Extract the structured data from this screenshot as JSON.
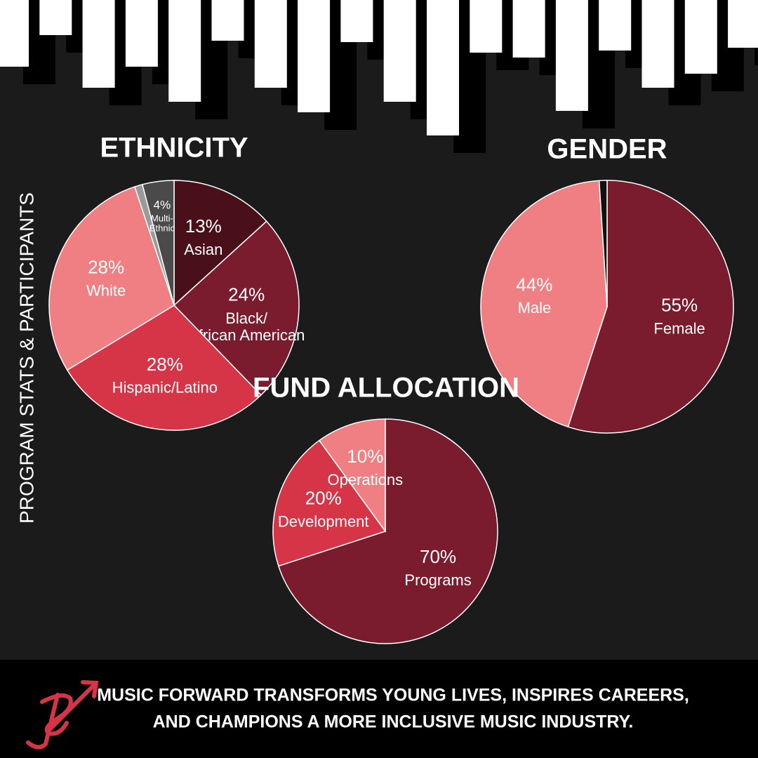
{
  "chart_data": [
    {
      "type": "pie",
      "title": "ETHNICITY",
      "categories": [
        "Asian",
        "Black/\nAfrican American",
        "Hispanic/Latino",
        "White",
        null,
        "Multi-\nEthnic"
      ],
      "values": [
        13,
        24,
        28,
        28,
        1,
        4
      ],
      "value_labels": [
        "13%",
        "24%",
        "28%",
        "28%",
        null,
        "4%"
      ],
      "colors": [
        "#4a1019",
        "#7a1c2e",
        "#d63447",
        "#f07f83",
        "#9a9a9a",
        "#4a4a4a"
      ]
    },
    {
      "type": "pie",
      "title": "GENDER",
      "categories": [
        "Female",
        "Male",
        null
      ],
      "values": [
        55,
        44,
        1
      ],
      "value_labels": [
        "55%",
        "44%",
        null
      ],
      "colors": [
        "#7a1c2e",
        "#f07f83",
        "#111111"
      ]
    },
    {
      "type": "pie",
      "title": "FUND ALLOCATION",
      "categories": [
        "Programs",
        "Development",
        "Operations"
      ],
      "values": [
        70,
        20,
        10
      ],
      "value_labels": [
        "70%",
        "20%",
        "10%"
      ],
      "colors": [
        "#7a1c2e",
        "#d63447",
        "#f07f83"
      ]
    }
  ],
  "side_label": "PROGRAM STATS & PARTICIPANTS",
  "footer": {
    "lines": [
      "MUSIC FORWARD TRANSFORMS YOUNG LIVES, INSPIRES CAREERS,",
      "AND CHAMPIONS A MORE INCLUSIVE MUSIC INDUSTRY."
    ]
  }
}
